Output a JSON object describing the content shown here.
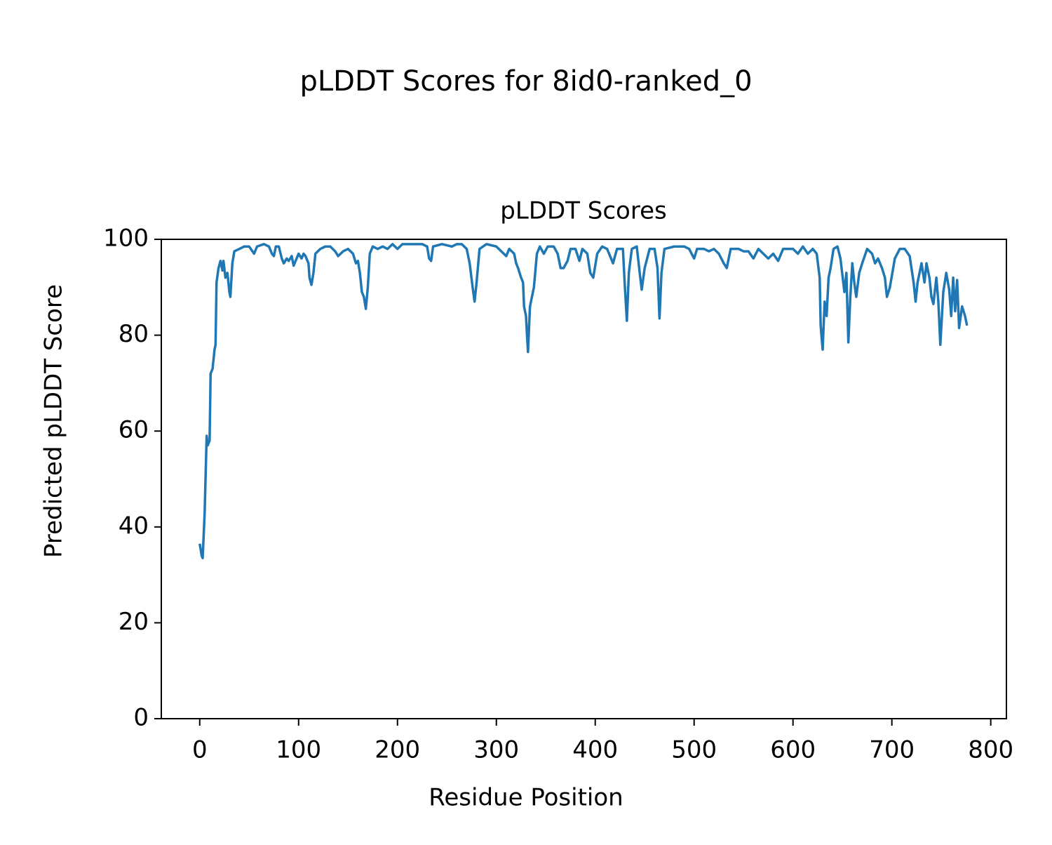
{
  "chart_data": {
    "type": "line",
    "title": "pLDDT Scores for 8id0-ranked_0",
    "subtitle": "pLDDT Scores",
    "x_label": "Residue Position",
    "y_label": "Predicted pLDDT Score",
    "xlim": [
      -38.85,
      815.85
    ],
    "ylim": [
      0,
      100
    ],
    "xticks": [
      0,
      100,
      200,
      300,
      400,
      500,
      600,
      700,
      800
    ],
    "yticks": [
      0,
      20,
      40,
      60,
      80,
      100
    ],
    "color": "#1f77b4",
    "x": [
      0,
      2,
      3,
      5,
      7,
      8,
      10,
      11,
      13,
      15,
      16,
      17,
      19,
      21,
      23,
      24,
      26,
      28,
      30,
      31,
      33,
      35,
      40,
      45,
      50,
      55,
      58,
      65,
      70,
      73,
      75,
      77,
      80,
      83,
      85,
      88,
      90,
      93,
      95,
      98,
      100,
      103,
      105,
      107,
      110,
      111,
      113,
      115,
      117,
      122,
      127,
      132,
      137,
      140,
      145,
      150,
      155,
      158,
      160,
      162,
      164,
      166,
      168,
      170,
      172,
      175,
      180,
      185,
      190,
      195,
      200,
      205,
      215,
      225,
      230,
      232,
      234,
      236,
      245,
      255,
      260,
      265,
      270,
      273,
      276,
      278,
      280,
      283,
      290,
      300,
      305,
      310,
      313,
      318,
      320,
      322,
      325,
      327,
      328,
      330,
      331,
      332,
      334,
      336,
      338,
      341,
      344,
      348,
      352,
      358,
      362,
      365,
      368,
      372,
      375,
      380,
      384,
      387,
      392,
      395,
      398,
      402,
      407,
      412,
      416,
      418,
      422,
      428,
      430,
      432,
      434,
      437,
      442,
      445,
      447,
      450,
      455,
      460,
      463,
      465,
      467,
      470,
      480,
      490,
      495,
      500,
      503,
      510,
      515,
      520,
      525,
      530,
      533,
      537,
      545,
      550,
      555,
      560,
      565,
      570,
      575,
      580,
      585,
      590,
      600,
      605,
      610,
      615,
      620,
      624,
      627,
      628,
      630,
      632,
      634,
      636,
      638,
      641,
      645,
      648,
      652,
      654,
      656,
      658,
      660,
      662,
      664,
      667,
      670,
      675,
      680,
      683,
      686,
      690,
      693,
      695,
      698,
      703,
      708,
      713,
      718,
      722,
      724,
      726,
      730,
      733,
      735,
      738,
      740,
      742,
      745,
      747,
      749,
      752,
      755,
      758,
      760,
      762,
      764,
      766,
      768,
      771,
      774,
      776
    ],
    "values": [
      36.5,
      34,
      33.5,
      43,
      59,
      57,
      58,
      72,
      73,
      77,
      78,
      91,
      94,
      95.5,
      93.5,
      95.5,
      92,
      93,
      89,
      88,
      95,
      97.5,
      98,
      98.5,
      98.5,
      97,
      98.5,
      99,
      98.5,
      97,
      96.5,
      98.5,
      98.5,
      96,
      95,
      96,
      95.5,
      96.5,
      94.5,
      96,
      97,
      96,
      97,
      96.5,
      95,
      92,
      90.5,
      93,
      97,
      98,
      98.5,
      98.5,
      97.5,
      96.5,
      97.5,
      98,
      97,
      95,
      95.5,
      93,
      89,
      88,
      85.5,
      90,
      97,
      98.5,
      98,
      98.5,
      98,
      99,
      98,
      99,
      99,
      99,
      98.5,
      96,
      95.5,
      98.5,
      99,
      98.5,
      99,
      99,
      98,
      95,
      90,
      87,
      91,
      98,
      99,
      98.5,
      97.5,
      96.5,
      98,
      97,
      95,
      94,
      92,
      91,
      86,
      84,
      80,
      76.5,
      86,
      88,
      90,
      97,
      98.5,
      97,
      98.5,
      98.5,
      97,
      94,
      94,
      95.5,
      98,
      98,
      95.5,
      98,
      97,
      93,
      92,
      97,
      98.5,
      98,
      96,
      95,
      98,
      98,
      90,
      83,
      93,
      98,
      98.5,
      93,
      89.5,
      94,
      98,
      98,
      94,
      83.5,
      93,
      98,
      98.5,
      98.5,
      98,
      96,
      98,
      98,
      97.5,
      98,
      97,
      95,
      94,
      98,
      98,
      97.5,
      97.5,
      96,
      98,
      97,
      96,
      97,
      95.5,
      98,
      98,
      97,
      98.5,
      97,
      98,
      97,
      92,
      82,
      77,
      87,
      84,
      92,
      94,
      98,
      98.5,
      96,
      89,
      93,
      78.5,
      88,
      95,
      91,
      88,
      93,
      95,
      98,
      97,
      95,
      96,
      94,
      92,
      88,
      90,
      96,
      98,
      98,
      96.5,
      91,
      87,
      91,
      95,
      91,
      95,
      92,
      88,
      86.5,
      92,
      87,
      78,
      89,
      93,
      89.5,
      84,
      92,
      85,
      91.5,
      81.5,
      86,
      84,
      82
    ]
  }
}
